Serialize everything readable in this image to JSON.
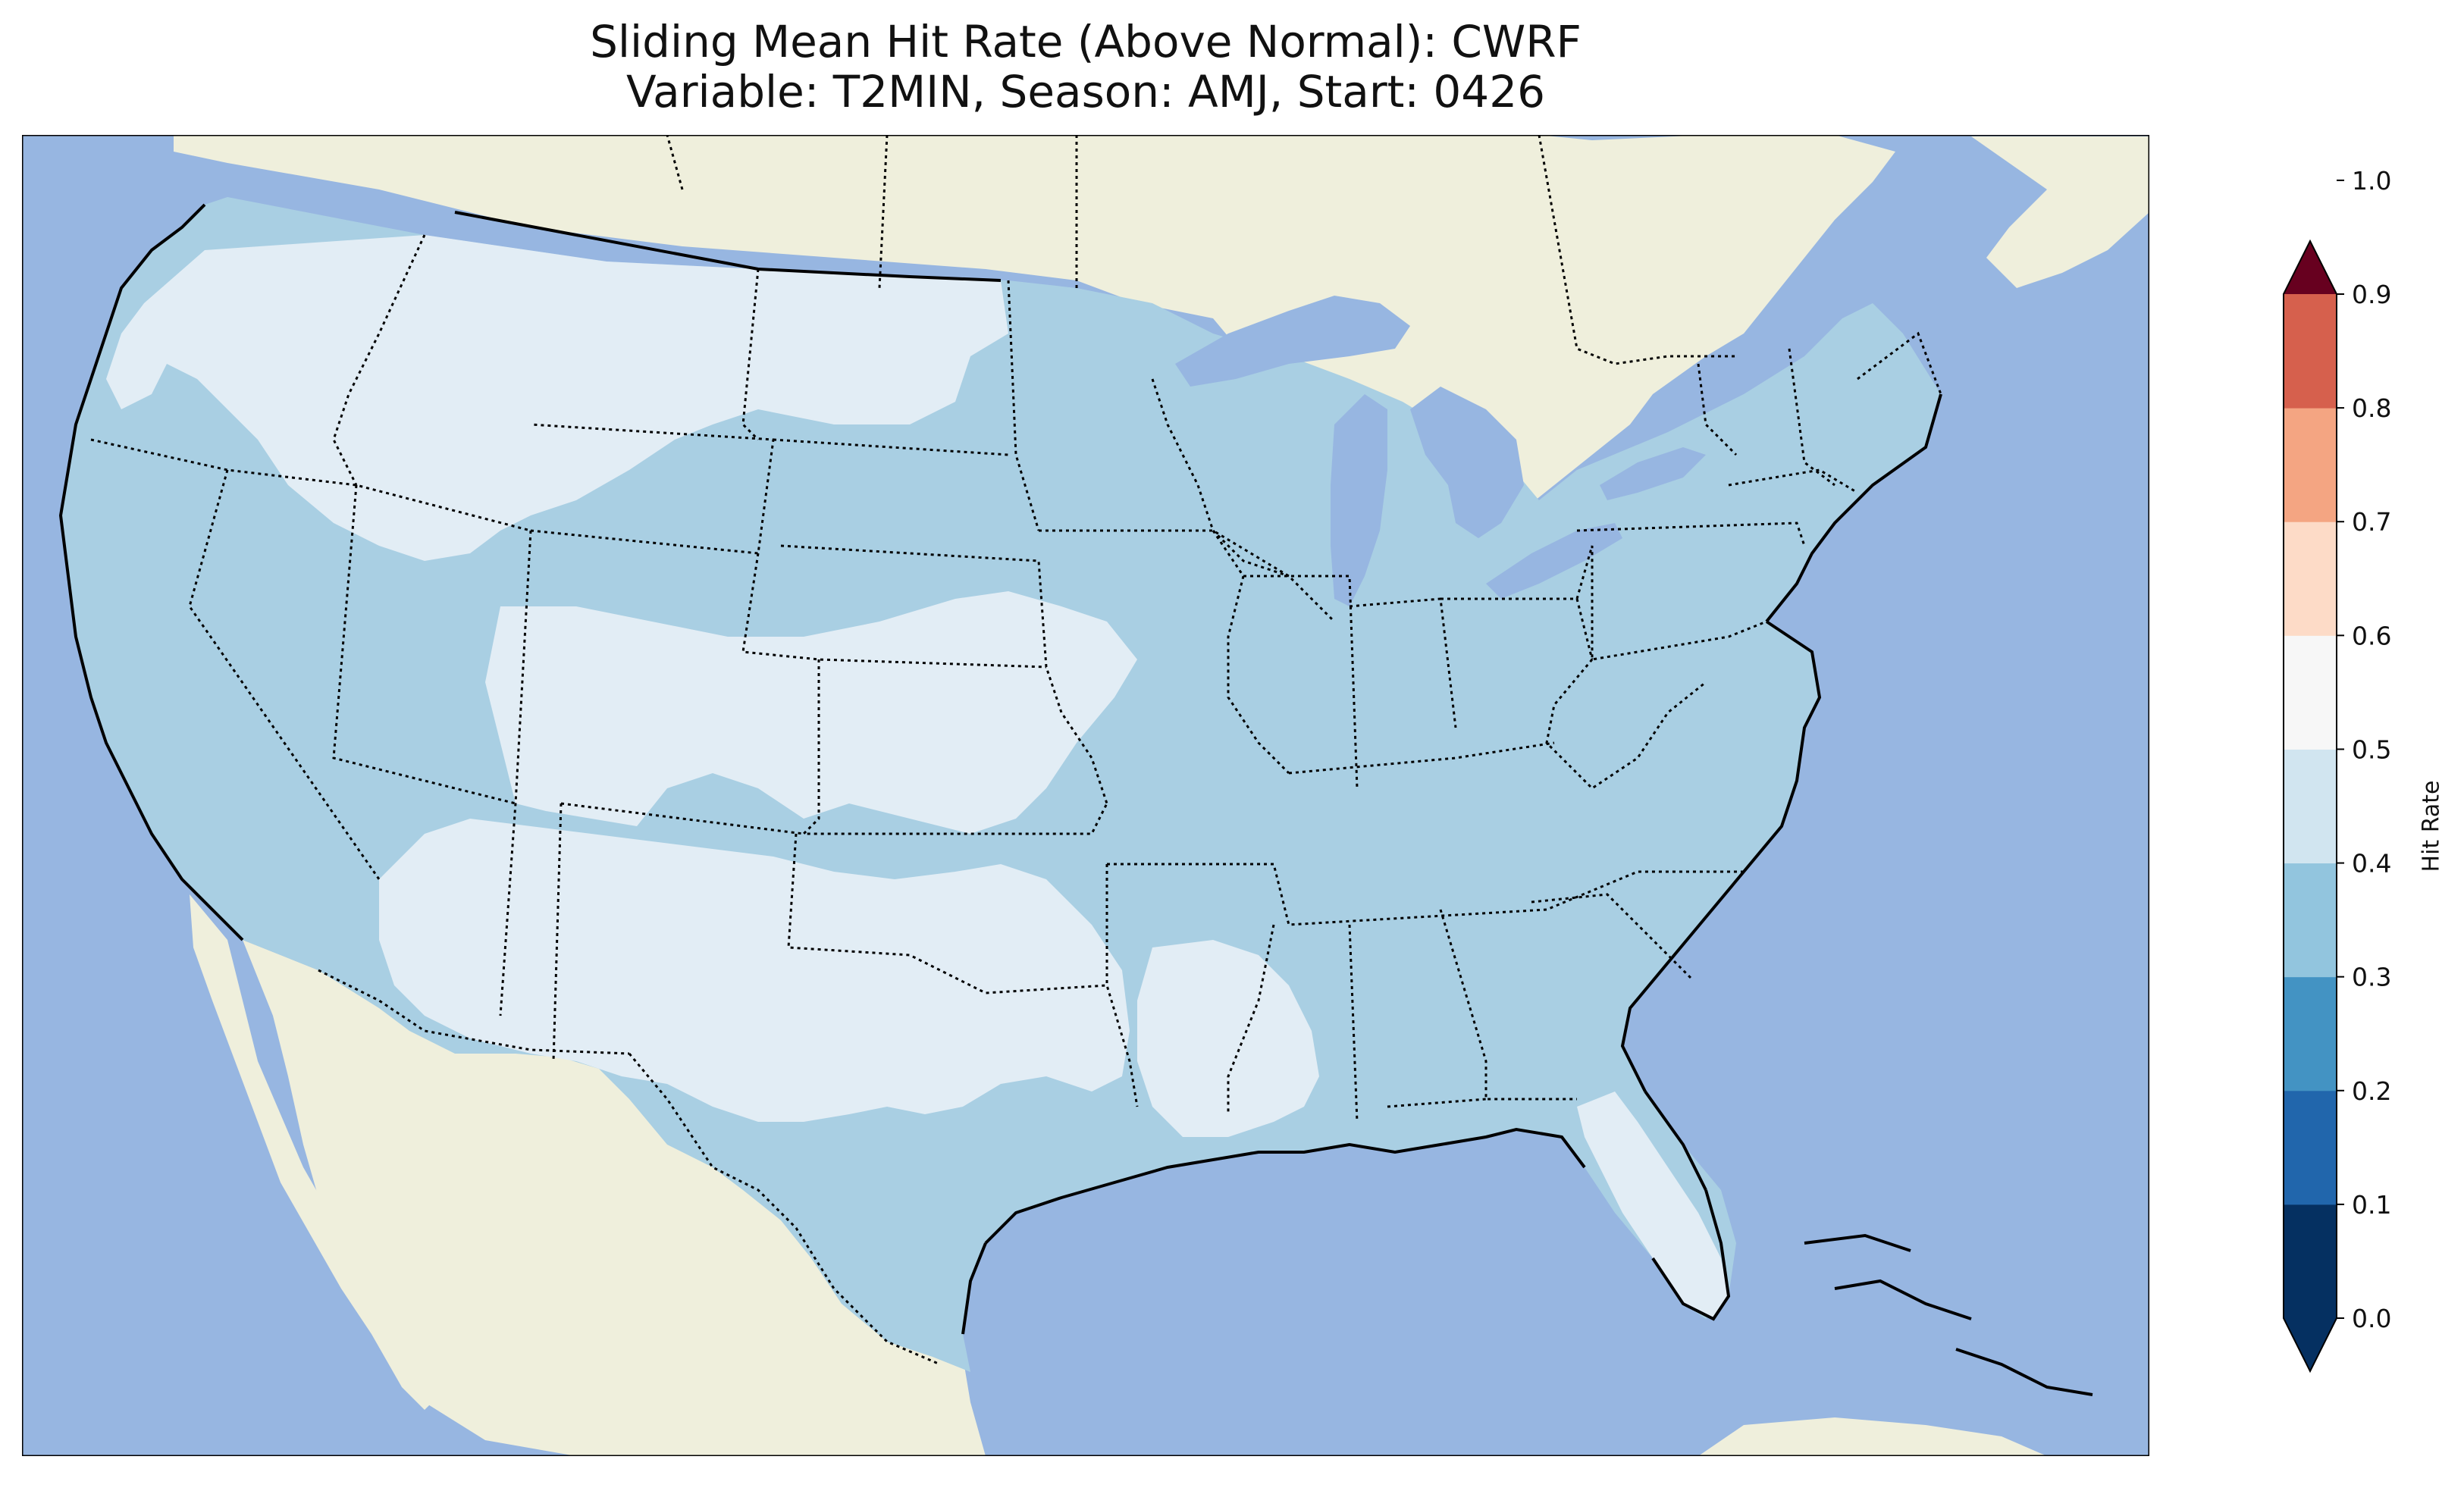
{
  "figure": {
    "title_line1": "Sliding Mean Hit Rate (Above Normal): CWRF",
    "title_line2": "Variable: T2MIN, Season: AMJ, Start: 0426"
  },
  "colors": {
    "ocean": "#97b6e1",
    "land_outside": "#efefdc",
    "border": "#000000"
  },
  "colorbar": {
    "label": "Hit Rate",
    "ticks": [
      "0.0",
      "0.1",
      "0.2",
      "0.3",
      "0.4",
      "0.5",
      "0.6",
      "0.7",
      "0.8",
      "0.9",
      "1.0"
    ],
    "bin_colors": [
      "#053061",
      "#2166ac",
      "#4393c3",
      "#92c5de",
      "#d1e5f0",
      "#f7f7f7",
      "#fddbc7",
      "#f4a582",
      "#d6604d",
      "#b2182b",
      "#67001f"
    ],
    "used_colors": {
      "0.3-0.4": "#a9cfe3",
      "0.4-0.5": "#e2edf5"
    }
  },
  "chart_data": {
    "type": "heatmap",
    "title": "Sliding Mean Hit Rate (Above Normal): CWRF",
    "subtitle": "Variable: T2MIN, Season: AMJ, Start: 0426",
    "colorbar_label": "Hit Rate",
    "range": [
      0.0,
      1.0
    ],
    "levels": [
      0.0,
      0.1,
      0.2,
      0.3,
      0.4,
      0.5,
      0.6,
      0.7,
      0.8,
      0.9,
      1.0
    ],
    "extend": "both",
    "regions": [
      {
        "name": "West Coast / Great Basin",
        "bin": "0.3-0.4"
      },
      {
        "name": "Northern Rockies / Montana",
        "bin": "0.4-0.5"
      },
      {
        "name": "Central Plains / Southwest / Texas",
        "bin": "0.4-0.5"
      },
      {
        "name": "Upper Midwest / Great Lakes / Ohio Valley",
        "bin": "0.3-0.4"
      },
      {
        "name": "Southeast / Mid-Atlantic / Northeast",
        "bin": "0.3-0.4"
      },
      {
        "name": "Lower Mississippi / Louisiana",
        "bin": "0.4-0.5"
      },
      {
        "name": "Florida Peninsula",
        "bin": "0.4-0.5"
      }
    ]
  }
}
